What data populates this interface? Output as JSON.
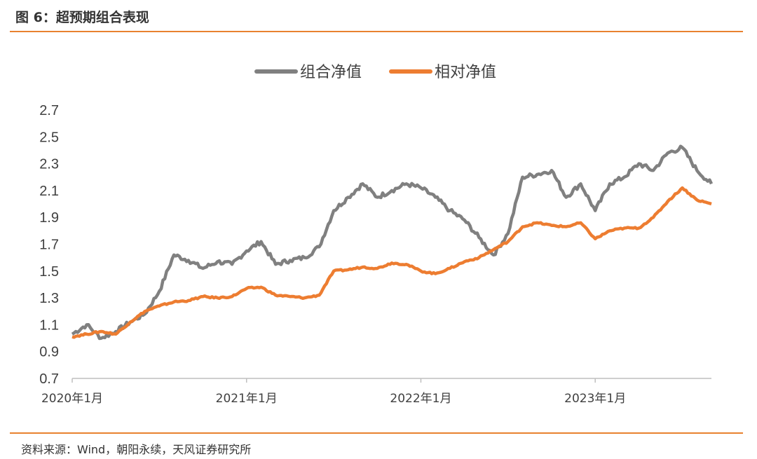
{
  "figure": {
    "title": "图 6：超预期组合表现",
    "source": "资料来源：Wind，朝阳永续，天风证券研究所"
  },
  "colors": {
    "accent": "#e8822f",
    "series_gray": "#808080",
    "series_orange": "#ed7d31"
  },
  "chart_data": {
    "type": "line",
    "title": "",
    "xlabel": "",
    "ylabel": "",
    "ylim": [
      0.7,
      2.7
    ],
    "yticks": [
      "2.7",
      "2.5",
      "2.3",
      "2.1",
      "1.9",
      "1.7",
      "1.5",
      "1.3",
      "1.1",
      "0.9",
      "0.7"
    ],
    "xticks": [
      "2020年1月",
      "2021年1月",
      "2022年1月",
      "2023年1月"
    ],
    "x_range": [
      "2020-01",
      "2023-09"
    ],
    "legend_position": "top-center",
    "grid": false,
    "x": [
      "2020-01",
      "2020-02",
      "2020-03",
      "2020-04",
      "2020-05",
      "2020-06",
      "2020-07",
      "2020-08",
      "2020-09",
      "2020-10",
      "2020-11",
      "2020-12",
      "2021-01",
      "2021-02",
      "2021-03",
      "2021-04",
      "2021-05",
      "2021-06",
      "2021-07",
      "2021-08",
      "2021-09",
      "2021-10",
      "2021-11",
      "2021-12",
      "2022-01",
      "2022-02",
      "2022-03",
      "2022-04",
      "2022-05",
      "2022-06",
      "2022-07",
      "2022-08",
      "2022-09",
      "2022-10",
      "2022-11",
      "2022-12",
      "2023-01",
      "2023-02",
      "2023-03",
      "2023-04",
      "2023-05",
      "2023-06",
      "2023-07",
      "2023-08",
      "2023-09"
    ],
    "series": [
      {
        "name": "组合净值",
        "color": "#808080",
        "values": [
          1.03,
          1.1,
          1.0,
          1.05,
          1.12,
          1.18,
          1.35,
          1.62,
          1.58,
          1.52,
          1.57,
          1.55,
          1.65,
          1.72,
          1.55,
          1.58,
          1.6,
          1.68,
          1.95,
          2.05,
          2.15,
          2.05,
          2.1,
          2.15,
          2.12,
          2.05,
          1.95,
          1.88,
          1.75,
          1.62,
          1.78,
          2.2,
          2.22,
          2.25,
          2.05,
          2.15,
          1.95,
          2.15,
          2.2,
          2.3,
          2.25,
          2.38,
          2.42,
          2.25,
          2.15
        ]
      },
      {
        "name": "相对净值",
        "color": "#ed7d31",
        "values": [
          1.01,
          1.03,
          1.05,
          1.03,
          1.12,
          1.2,
          1.24,
          1.27,
          1.28,
          1.31,
          1.3,
          1.31,
          1.37,
          1.38,
          1.32,
          1.31,
          1.3,
          1.32,
          1.5,
          1.51,
          1.53,
          1.52,
          1.56,
          1.55,
          1.5,
          1.48,
          1.52,
          1.57,
          1.6,
          1.66,
          1.72,
          1.83,
          1.86,
          1.84,
          1.83,
          1.86,
          1.74,
          1.8,
          1.82,
          1.82,
          1.9,
          2.02,
          2.12,
          2.03,
          2.0
        ]
      }
    ]
  }
}
